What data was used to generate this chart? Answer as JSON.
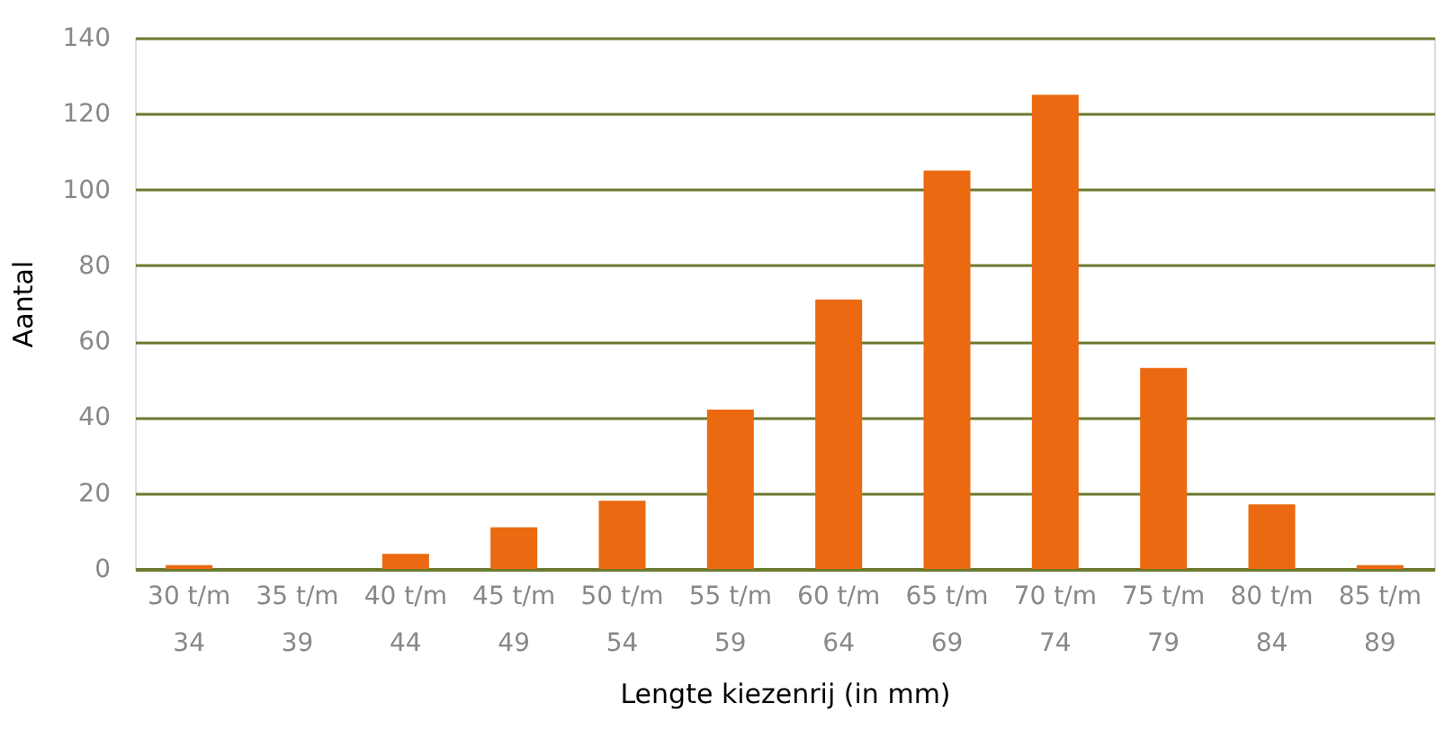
{
  "chart_data": {
    "type": "bar",
    "xlabel": "Lengte kiezenrij (in mm)",
    "ylabel": "Aantal",
    "categories": [
      "30 t/m\n34",
      "35 t/m\n39",
      "40 t/m\n44",
      "45 t/m\n49",
      "50 t/m\n54",
      "55 t/m\n59",
      "60 t/m\n64",
      "65 t/m\n69",
      "70 t/m\n74",
      "75 t/m\n79",
      "80 t/m\n84",
      "85 t/m\n89"
    ],
    "values": [
      1,
      0,
      4,
      11,
      18,
      42,
      71,
      105,
      125,
      53,
      17,
      1
    ],
    "color": "#eb6910",
    "ylim": [
      0,
      140
    ],
    "yticks": [
      0,
      20,
      40,
      60,
      80,
      100,
      120,
      140
    ],
    "grid": "y"
  }
}
